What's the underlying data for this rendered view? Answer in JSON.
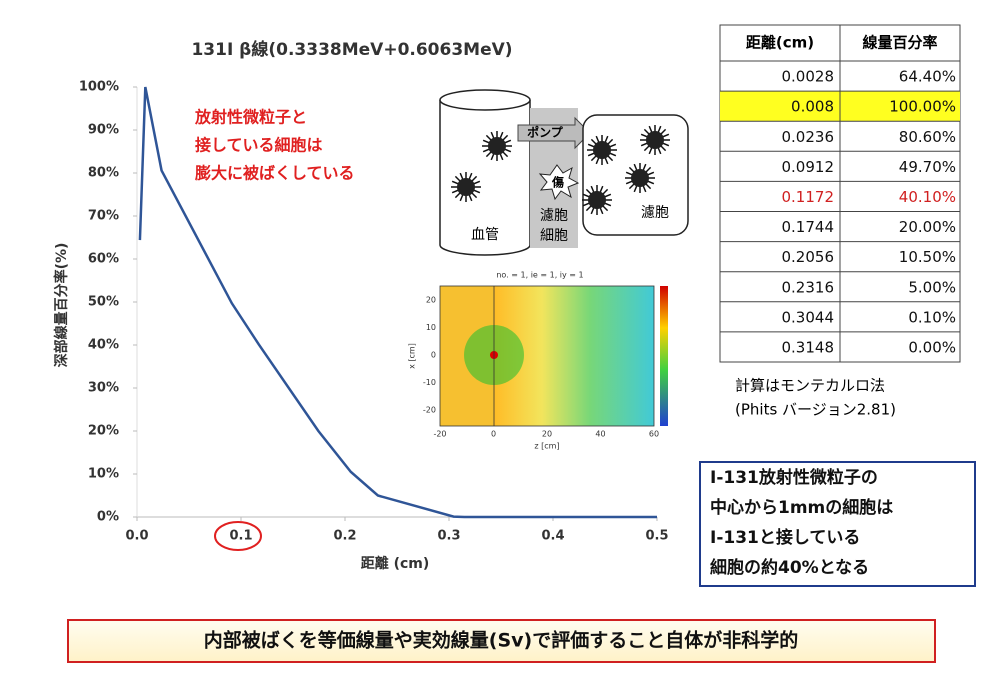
{
  "chart_data": {
    "type": "line",
    "title": "131I β線(0.3338MeV+0.6063MeV)",
    "ylabel": "深部線量百分率(%)",
    "xlabel": "距離 (cm)",
    "annotation": [
      "放射性微粒子と",
      "接している細胞は",
      "膨大に被ばくしている"
    ],
    "x": [
      0.0028,
      0.008,
      0.0236,
      0.0912,
      0.1172,
      0.1744,
      0.2056,
      0.2316,
      0.3044,
      0.3148,
      0.5
    ],
    "series": [
      {
        "name": "深部線量百分率",
        "color": "#2f5597",
        "values": [
          64.4,
          100,
          80.6,
          49.7,
          40.1,
          20,
          10.5,
          5,
          0.1,
          0,
          0
        ]
      }
    ],
    "xlim": [
      0,
      0.5
    ],
    "xticks": [
      {
        "value": 0,
        "label": "0.0"
      },
      0.1,
      0.2,
      0.3,
      0.4,
      0.5
    ],
    "ylim": [
      0,
      100
    ],
    "yticks": [
      {
        "value": 0,
        "label": "0%"
      },
      {
        "value": 10,
        "label": "10%"
      },
      {
        "value": 20,
        "label": "20%"
      },
      {
        "value": 30,
        "label": "30%"
      },
      {
        "value": 40,
        "label": "40%"
      },
      {
        "value": 50,
        "label": "50%"
      },
      {
        "value": 60,
        "label": "60%"
      },
      {
        "value": 70,
        "label": "70%"
      },
      {
        "value": 80,
        "label": "80%"
      },
      {
        "value": 90,
        "label": "90%"
      },
      {
        "value": 100,
        "label": "100%"
      }
    ],
    "grid": false
  },
  "diagram": {
    "vessel": "血管",
    "pump": "ポンプ",
    "injury": "傷",
    "follicle_cell": [
      "濾胞",
      "細胞"
    ],
    "follicle": "濾胞"
  },
  "inset": {
    "title": "no. = 1, ie = 1, iy = 1",
    "xlabel": "z [cm]",
    "ylabel": "x [cm]",
    "xticks": [
      "-20",
      "0",
      "20",
      "40",
      "60"
    ],
    "yticks": [
      "20",
      "10",
      "0",
      "-10",
      "-20"
    ]
  },
  "table": {
    "header": [
      "距離(cm)",
      "線量百分率"
    ],
    "rows": [
      [
        "0.0028",
        "64.40%"
      ],
      [
        "0.008",
        "100.00%"
      ],
      [
        "0.0236",
        "80.60%"
      ],
      [
        "0.0912",
        "49.70%"
      ],
      [
        "0.1172",
        "40.10%"
      ],
      [
        "0.1744",
        "20.00%"
      ],
      [
        "0.2056",
        "10.50%"
      ],
      [
        "0.2316",
        "5.00%"
      ],
      [
        "0.3044",
        "0.10%"
      ],
      [
        "0.3148",
        "0.00%"
      ]
    ]
  },
  "method": [
    "計算はモンテカルロ法",
    "(Phits バージョン2.81)"
  ],
  "note": [
    "I-131放射性微粒子の",
    "中心から1mmの細胞は",
    "I-131と接している",
    "細胞の約40%となる"
  ],
  "conclusion": "内部被ばくを等価線量や実効線量(Sv)で評価すること自体が非科学的"
}
